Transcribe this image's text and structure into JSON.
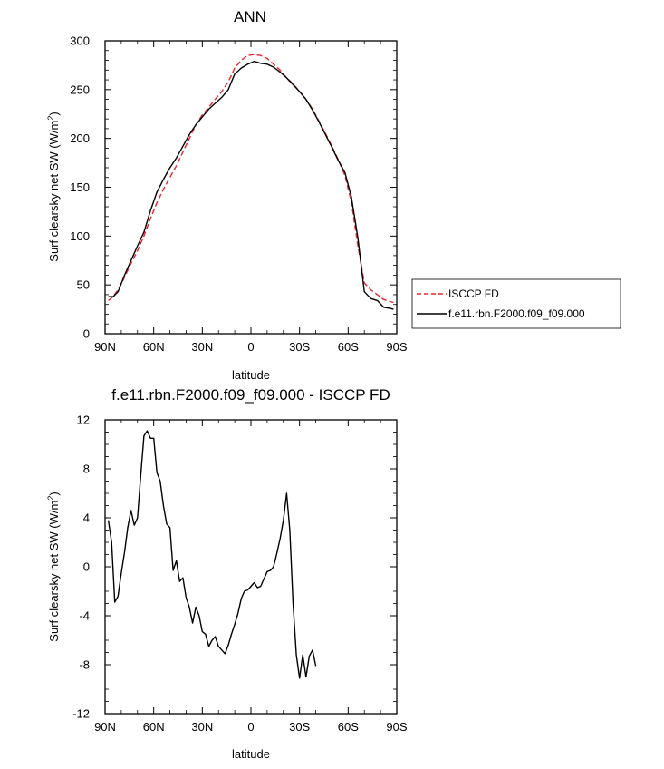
{
  "chart_data": [
    {
      "type": "line",
      "title": "ANN",
      "xlabel": "latitude",
      "ylabel": "Surf clearsky net SW (W/m²)",
      "ylabel_main": "Surf clearsky net SW (W/m",
      "ylabel_sup": "2",
      "ylabel_end": ")",
      "xlim": [
        90,
        -90
      ],
      "ylim": [
        0,
        300
      ],
      "x_ticks": [
        {
          "value": 90,
          "label": "90N"
        },
        {
          "value": 60,
          "label": "60N"
        },
        {
          "value": 30,
          "label": "30N"
        },
        {
          "value": 0,
          "label": "0"
        },
        {
          "value": -30,
          "label": "30S"
        },
        {
          "value": -60,
          "label": "60S"
        },
        {
          "value": -90,
          "label": "90S"
        }
      ],
      "y_ticks": [
        {
          "value": 0,
          "label": "0"
        },
        {
          "value": 50,
          "label": "50"
        },
        {
          "value": 100,
          "label": "100"
        },
        {
          "value": 150,
          "label": "150"
        },
        {
          "value": 200,
          "label": "200"
        },
        {
          "value": 250,
          "label": "250"
        },
        {
          "value": 300,
          "label": "300"
        }
      ],
      "legend": {
        "position": "right"
      },
      "series": [
        {
          "name": "ISCCP FD",
          "color": "#e8262a",
          "dash": "dashed",
          "points": [
            [
              88,
              34
            ],
            [
              85,
              38
            ],
            [
              82,
              45
            ],
            [
              78,
              58
            ],
            [
              74,
              72
            ],
            [
              70,
              85
            ],
            [
              66,
              100
            ],
            [
              62,
              118
            ],
            [
              58,
              134
            ],
            [
              54,
              148
            ],
            [
              50,
              160
            ],
            [
              46,
              172
            ],
            [
              42,
              186
            ],
            [
              38,
              200
            ],
            [
              34,
              214
            ],
            [
              30,
              224
            ],
            [
              26,
              232
            ],
            [
              22,
              240
            ],
            [
              18,
              248
            ],
            [
              14,
              258
            ],
            [
              10,
              272
            ],
            [
              6,
              280
            ],
            [
              2,
              285
            ],
            [
              -2,
              286
            ],
            [
              -6,
              285
            ],
            [
              -10,
              282
            ],
            [
              -14,
              276
            ],
            [
              -18,
              270
            ],
            [
              -22,
              262
            ],
            [
              -26,
              256
            ],
            [
              -30,
              248
            ],
            [
              -34,
              240
            ],
            [
              -38,
              230
            ],
            [
              -42,
              218
            ],
            [
              -46,
              205
            ],
            [
              -50,
              192
            ],
            [
              -54,
              178
            ],
            [
              -58,
              162
            ],
            [
              -62,
              135
            ],
            [
              -66,
              90
            ],
            [
              -70,
              52
            ],
            [
              -74,
              45
            ],
            [
              -78,
              40
            ],
            [
              -82,
              35
            ],
            [
              -86,
              33
            ],
            [
              -88,
              32
            ]
          ]
        },
        {
          "name": "f.e11.rbn.F2000.f09_f09.000",
          "color": "#000000",
          "dash": "solid",
          "points": [
            [
              88,
              38
            ],
            [
              85,
              38
            ],
            [
              82,
              43
            ],
            [
              78,
              60
            ],
            [
              74,
              75
            ],
            [
              70,
              90
            ],
            [
              66,
              104
            ],
            [
              62,
              126
            ],
            [
              58,
              145
            ],
            [
              54,
              158
            ],
            [
              50,
              170
            ],
            [
              46,
              180
            ],
            [
              42,
              192
            ],
            [
              38,
              204
            ],
            [
              34,
              214
            ],
            [
              30,
              222
            ],
            [
              26,
              230
            ],
            [
              22,
              236
            ],
            [
              18,
              242
            ],
            [
              14,
              250
            ],
            [
              10,
              266
            ],
            [
              6,
              272
            ],
            [
              2,
              276
            ],
            [
              -2,
              279
            ],
            [
              -6,
              277
            ],
            [
              -10,
              276
            ],
            [
              -14,
              273
            ],
            [
              -18,
              268
            ],
            [
              -22,
              262
            ],
            [
              -26,
              255
            ],
            [
              -30,
              248
            ],
            [
              -34,
              240
            ],
            [
              -38,
              229
            ],
            [
              -42,
              217
            ],
            [
              -46,
              204
            ],
            [
              -50,
              191
            ],
            [
              -54,
              177
            ],
            [
              -58,
              165
            ],
            [
              -62,
              140
            ],
            [
              -66,
              98
            ],
            [
              -70,
              43
            ],
            [
              -74,
              36
            ],
            [
              -78,
              34
            ],
            [
              -82,
              27
            ],
            [
              -86,
              26
            ],
            [
              -88,
              25
            ]
          ]
        }
      ]
    },
    {
      "type": "line",
      "title": "f.e11.rbn.F2000.f09_f09.000 - ISCCP FD",
      "xlabel": "latitude",
      "ylabel": "Surf clearsky net SW (W/m²)",
      "ylabel_main": "Surf clearsky net SW (W/m",
      "ylabel_sup": "2",
      "ylabel_end": ")",
      "xlim": [
        90,
        -90
      ],
      "ylim": [
        -12,
        12
      ],
      "x_ticks": [
        {
          "value": 90,
          "label": "90N"
        },
        {
          "value": 60,
          "label": "60N"
        },
        {
          "value": 30,
          "label": "30N"
        },
        {
          "value": 0,
          "label": "0"
        },
        {
          "value": -30,
          "label": "30S"
        },
        {
          "value": -60,
          "label": "60S"
        },
        {
          "value": -90,
          "label": "90S"
        }
      ],
      "y_ticks": [
        {
          "value": -12,
          "label": "-12"
        },
        {
          "value": -8,
          "label": "-8"
        },
        {
          "value": -4,
          "label": "-4"
        },
        {
          "value": 0,
          "label": "0"
        },
        {
          "value": 4,
          "label": "4"
        },
        {
          "value": 8,
          "label": "8"
        },
        {
          "value": 12,
          "label": "12"
        }
      ],
      "series": [
        {
          "color": "#000000",
          "dash": "solid",
          "points": [
            [
              88,
              3.8
            ],
            [
              86,
              2.0
            ],
            [
              84,
              -2.9
            ],
            [
              82,
              -2.4
            ],
            [
              80,
              -0.5
            ],
            [
              78,
              1.2
            ],
            [
              76,
              3.2
            ],
            [
              74,
              4.6
            ],
            [
              72,
              3.4
            ],
            [
              70,
              4.0
            ],
            [
              68,
              7.5
            ],
            [
              66,
              10.7
            ],
            [
              64,
              11.1
            ],
            [
              62,
              10.5
            ],
            [
              60,
              10.5
            ],
            [
              58,
              7.7
            ],
            [
              56,
              7.0
            ],
            [
              54,
              5.0
            ],
            [
              52,
              3.5
            ],
            [
              50,
              3.2
            ],
            [
              48,
              -0.3
            ],
            [
              46,
              0.5
            ],
            [
              44,
              -1.2
            ],
            [
              42,
              -0.9
            ],
            [
              40,
              -2.5
            ],
            [
              38,
              -3.3
            ],
            [
              36,
              -4.6
            ],
            [
              34,
              -3.3
            ],
            [
              32,
              -4.0
            ],
            [
              30,
              -5.3
            ],
            [
              28,
              -5.5
            ],
            [
              26,
              -6.5
            ],
            [
              24,
              -6.0
            ],
            [
              22,
              -5.7
            ],
            [
              20,
              -6.5
            ],
            [
              18,
              -6.8
            ],
            [
              16,
              -7.1
            ],
            [
              14,
              -6.4
            ],
            [
              12,
              -5.5
            ],
            [
              10,
              -4.7
            ],
            [
              8,
              -3.8
            ],
            [
              6,
              -2.6
            ],
            [
              4,
              -2.0
            ],
            [
              2,
              -1.9
            ],
            [
              0,
              -1.6
            ],
            [
              -2,
              -1.3
            ],
            [
              -4,
              -1.7
            ],
            [
              -6,
              -1.6
            ],
            [
              -8,
              -1.0
            ],
            [
              -10,
              -0.4
            ],
            [
              -12,
              -0.3
            ],
            [
              -14,
              0.0
            ],
            [
              -16,
              1.1
            ],
            [
              -18,
              2.3
            ],
            [
              -20,
              3.8
            ],
            [
              -22,
              6.0
            ],
            [
              -24,
              3.0
            ],
            [
              -26,
              -3.0
            ],
            [
              -28,
              -7.2
            ],
            [
              -30,
              -9.1
            ],
            [
              -32,
              -7.2
            ],
            [
              -34,
              -9.0
            ],
            [
              -36,
              -7.3
            ],
            [
              -38,
              -6.8
            ],
            [
              -40,
              -8.1
            ]
          ]
        }
      ]
    }
  ]
}
